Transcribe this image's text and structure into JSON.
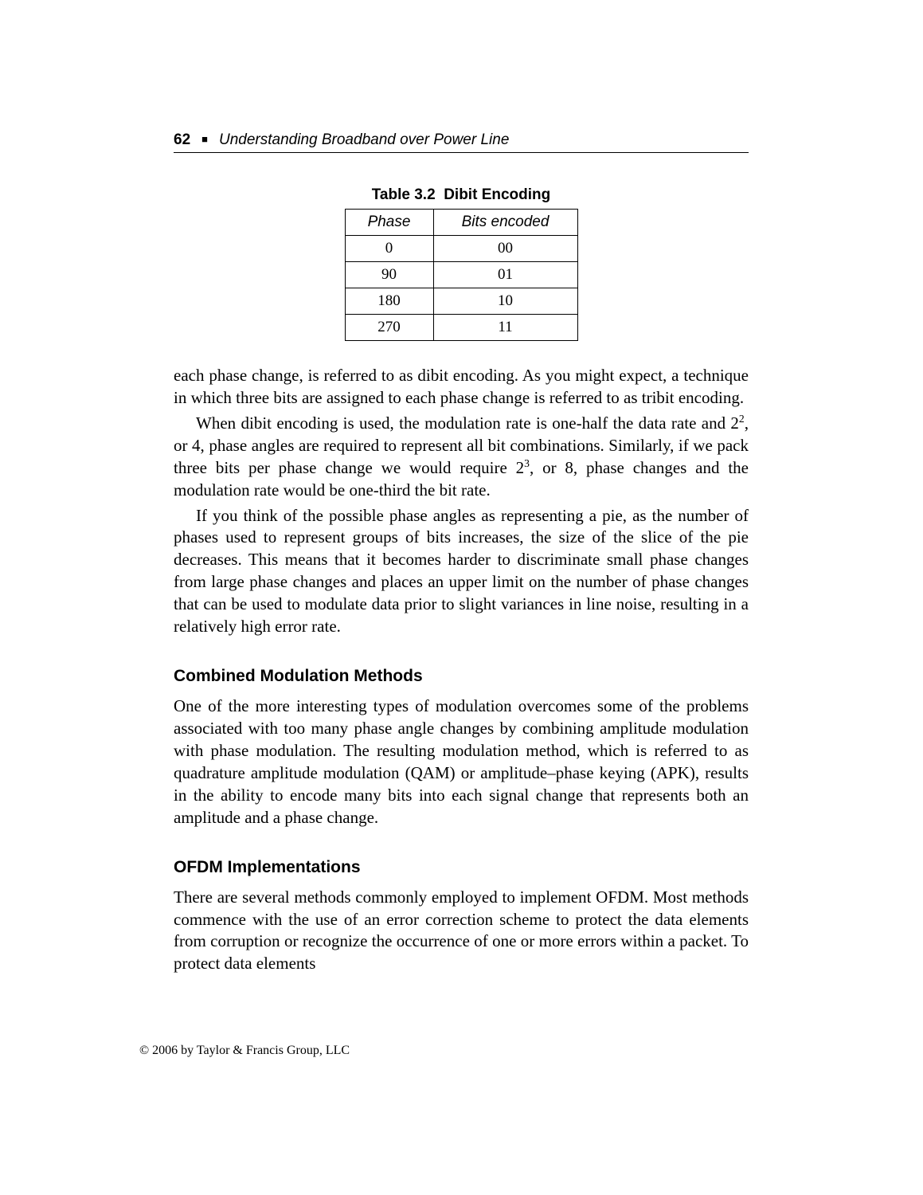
{
  "header": {
    "page_number": "62",
    "book_title": "Understanding Broadband over Power Line"
  },
  "table": {
    "caption_label": "Table 3.2",
    "caption_title": "Dibit Encoding",
    "columns": [
      "Phase",
      "Bits encoded"
    ],
    "rows": [
      [
        "0",
        "00"
      ],
      [
        "90",
        "01"
      ],
      [
        "180",
        "10"
      ],
      [
        "270",
        "11"
      ]
    ]
  },
  "paragraphs": {
    "p1": "each phase change, is referred to as dibit encoding. As you might expect, a technique in which three bits are assigned to each phase change is referred to as tribit encoding.",
    "p2_pre": "When dibit encoding is used, the modulation rate is one-half the data rate and 2",
    "p2_sup1": "2",
    "p2_mid": ", or 4, phase angles are required to represent all bit combinations. Similarly, if we pack three bits per phase change we would require 2",
    "p2_sup2": "3",
    "p2_post": ", or 8, phase changes and the modulation rate would be one-third the bit rate.",
    "p3": "If you think of the possible phase angles as representing a pie, as the number of phases used to represent groups of bits increases, the size of the slice of the pie decreases. This means that it becomes harder to discriminate small phase changes from large phase changes and places an upper limit on the number of phase changes that can be used to modulate data prior to slight variances in line noise, resulting in a relatively high error rate.",
    "s1_title": "Combined Modulation Methods",
    "s1_p1": "One of the more interesting types of modulation overcomes some of the problems associated with too many phase angle changes by combining amplitude modulation with phase modulation. The resulting modulation method, which is referred to as quadrature amplitude modulation (QAM) or amplitude–phase keying (APK), results in the ability to encode many bits into each signal change that represents both an amplitude and a phase change.",
    "s2_title": "OFDM Implementations",
    "s2_p1": "There are several methods commonly employed to implement OFDM. Most methods commence with the use of an error correction scheme to protect the data elements from corruption or recognize the occurrence of one or more errors within a packet. To protect data elements"
  },
  "copyright": "© 2006 by Taylor & Francis Group, LLC"
}
